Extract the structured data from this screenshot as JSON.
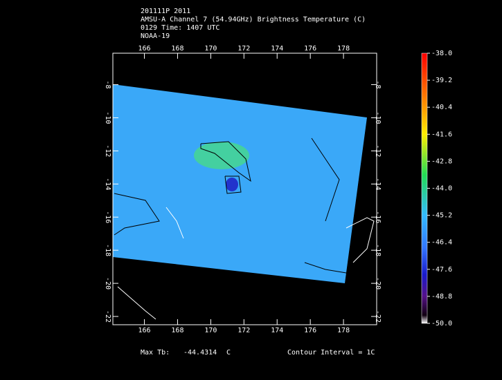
{
  "header": {
    "lines": [
      "201111P 2011",
      "AMSU-A Channel 7 (54.94GHz) Brightness Temperature (C)",
      "0129 Time: 1407 UTC",
      "NOAA-19"
    ]
  },
  "map": {
    "lon_range": [
      164.1,
      180.0
    ],
    "lat_range": [
      -6.1,
      -22.5
    ],
    "lon_ticks": [
      166,
      168,
      170,
      172,
      174,
      176,
      178
    ],
    "lat_ticks": [
      -8,
      -10,
      -12,
      -14,
      -16,
      -18,
      -20,
      -22
    ]
  },
  "colorbar": {
    "range": [
      -38.0,
      -50.0
    ],
    "ticks": [
      {
        "value": -38.0,
        "label": "-38.0"
      },
      {
        "value": -39.2,
        "label": "-39.2"
      },
      {
        "value": -40.4,
        "label": "-40.4"
      },
      {
        "value": -41.6,
        "label": "-41.6"
      },
      {
        "value": -42.8,
        "label": "-42.8"
      },
      {
        "value": -44.0,
        "label": "-44.0"
      },
      {
        "value": -45.2,
        "label": "-45.2"
      },
      {
        "value": -46.4,
        "label": "-46.4"
      },
      {
        "value": -47.6,
        "label": "-47.6"
      },
      {
        "value": -48.8,
        "label": "-48.8"
      },
      {
        "value": -50.0,
        "label": "-50.0"
      }
    ]
  },
  "footer": {
    "max_label": "Max Tb:",
    "max_value": "-44.4314",
    "unit": "C",
    "contour": "Contour Interval = 1C"
  }
}
